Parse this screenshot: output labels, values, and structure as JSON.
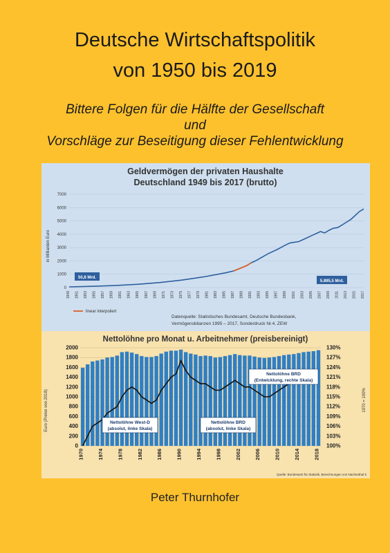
{
  "cover": {
    "title_line1": "Deutsche Wirtschaftspolitik",
    "title_line2": "von 1950 bis 2019",
    "subtitle_line1": "Bittere Folgen für die Hälfte der Gesellschaft",
    "subtitle_line2": "und",
    "subtitle_line3": "Vorschläge zur Beseitigung dieser Fehlentwicklung",
    "author": "Peter Thurnhofer"
  },
  "colors": {
    "background": "#FDC12E",
    "chart1_bg": "#CFDFEF",
    "chart2_bg": "#F8E2AE",
    "line_blue": "#2E5F9E",
    "line_orange": "#D9602A",
    "bar_blue": "#2F7FC5"
  },
  "chart_data": [
    {
      "type": "line",
      "title": "Geldvermögen der privaten Haushalte",
      "subtitle": "Deutschland 1949 bis 2017 (brutto)",
      "ylabel": "in Milliarden Euro",
      "ylim": [
        0,
        7000
      ],
      "yticks": [
        "0",
        "1000",
        "2000",
        "3000",
        "4000",
        "5000",
        "6000",
        "7000"
      ],
      "legend": "linear interpoliert",
      "annotation_start": "50,8 Mrd.",
      "annotation_end": "5.895,5 Mrd.",
      "source_line1": "Datenquelle: Statistisches Bundesamt, Deutsche Bundesbank,",
      "source_line2": "Vermögensbilanzen 1995 – 2017, Sonderdruck Nr.4, ZEW",
      "x": [
        1949,
        1955,
        1960,
        1965,
        1970,
        1975,
        1980,
        1985,
        1987,
        1990,
        1991,
        1992,
        1995,
        1997,
        1999,
        2000,
        2001,
        2002,
        2003,
        2005,
        2007,
        2008,
        2009,
        2010,
        2011,
        2012,
        2013,
        2014,
        2015,
        2016,
        2017
      ],
      "y": [
        51,
        100,
        160,
        250,
        380,
        560,
        800,
        1100,
        1250,
        1650,
        1850,
        2000,
        2550,
        2850,
        3200,
        3350,
        3400,
        3450,
        3600,
        3900,
        4200,
        4100,
        4300,
        4450,
        4500,
        4700,
        4900,
        5100,
        5400,
        5700,
        5895
      ],
      "interpolated_x_range": [
        1987,
        1991
      ]
    },
    {
      "type": "bar",
      "title": "Nettolöhne pro Monat u. Arbeitnehmer (preisbereinigt)",
      "ylabel_left": "Euro (Preise von 2018)",
      "ylabel_right": "1970 = 100%",
      "ylim": [
        0,
        2000
      ],
      "y2lim": [
        100,
        130
      ],
      "yticks": [
        "0",
        "200",
        "400",
        "600",
        "800",
        "1000",
        "1200",
        "1400",
        "1600",
        "1800",
        "2000"
      ],
      "y2ticks": [
        "100%",
        "103%",
        "106%",
        "109%",
        "112%",
        "115%",
        "118%",
        "121%",
        "124%",
        "127%",
        "130%"
      ],
      "xticks": [
        "1970",
        "1974",
        "1978",
        "1982",
        "1986",
        "1990",
        "1994",
        "1998",
        "2002",
        "2006",
        "2010",
        "2014",
        "2018"
      ],
      "label_bars_west": "Nettolöhne West-D (absolut, linke Skala)",
      "label_bars_brd": "Nettolöhne BRD (absolut, linke Skala)",
      "label_line": "Nettolöhne BRD (Entwicklung, rechte Skala)",
      "source": "Quelle: Bundesamt für Statistik, Berechnungen von Nachenthal 5",
      "years": [
        1970,
        1971,
        1972,
        1973,
        1974,
        1975,
        1976,
        1977,
        1978,
        1979,
        1980,
        1981,
        1982,
        1983,
        1984,
        1985,
        1986,
        1987,
        1988,
        1989,
        1990,
        1991,
        1992,
        1993,
        1994,
        1995,
        1996,
        1997,
        1998,
        1999,
        2000,
        2001,
        2002,
        2003,
        2004,
        2005,
        2006,
        2007,
        2008,
        2009,
        2010,
        2011,
        2012,
        2013,
        2014,
        2015,
        2016,
        2017,
        2018
      ],
      "values": [
        1590,
        1660,
        1720,
        1740,
        1760,
        1800,
        1810,
        1840,
        1910,
        1920,
        1900,
        1870,
        1830,
        1810,
        1810,
        1830,
        1880,
        1920,
        1940,
        1940,
        1960,
        1910,
        1880,
        1860,
        1830,
        1840,
        1830,
        1800,
        1810,
        1830,
        1850,
        1870,
        1850,
        1840,
        1840,
        1820,
        1800,
        1790,
        1800,
        1810,
        1830,
        1850,
        1860,
        1870,
        1890,
        1910,
        1920,
        1930,
        1950
      ],
      "index_values": [
        100,
        103,
        106,
        107,
        108,
        110,
        111,
        112,
        115,
        117,
        118,
        117,
        115,
        114,
        113,
        114,
        117,
        119,
        121,
        122,
        126,
        123,
        121,
        120,
        119,
        119,
        118,
        117,
        117,
        118,
        119,
        120,
        119,
        118,
        118,
        117,
        116,
        115,
        115,
        116,
        117,
        118,
        119,
        119,
        120,
        121,
        122,
        122,
        123
      ]
    }
  ]
}
